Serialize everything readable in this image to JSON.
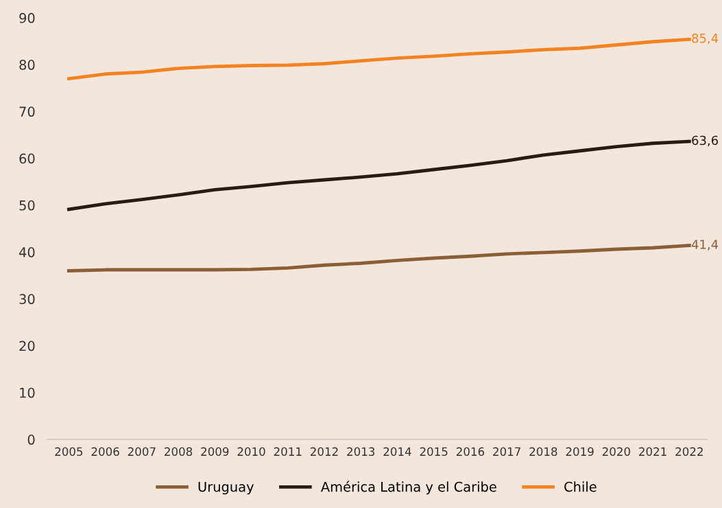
{
  "chart_data": {
    "type": "line",
    "categories": [
      "2005",
      "2006",
      "2007",
      "2008",
      "2009",
      "2010",
      "2011",
      "2012",
      "2013",
      "2014",
      "2015",
      "2016",
      "2017",
      "2018",
      "2019",
      "2020",
      "2021",
      "2022"
    ],
    "series": [
      {
        "name": "Uruguay",
        "color": "#8c5e35",
        "values": [
          36.0,
          36.2,
          36.2,
          36.2,
          36.2,
          36.3,
          36.6,
          37.2,
          37.6,
          38.2,
          38.7,
          39.1,
          39.6,
          39.9,
          40.2,
          40.6,
          40.9,
          41.4
        ],
        "value_labels": [
          null,
          null,
          null,
          null,
          null,
          null,
          null,
          null,
          null,
          null,
          null,
          null,
          null,
          null,
          null,
          null,
          null,
          "41,4"
        ]
      },
      {
        "name": "América Latina y el Caribe",
        "color": "#2a1a14",
        "values": [
          49.1,
          50.3,
          51.2,
          52.2,
          53.3,
          54.0,
          54.8,
          55.4,
          56.0,
          56.7,
          57.6,
          58.5,
          59.5,
          60.7,
          61.6,
          62.5,
          63.2,
          63.6
        ],
        "value_labels": [
          null,
          null,
          null,
          null,
          null,
          null,
          null,
          null,
          null,
          null,
          null,
          null,
          null,
          null,
          null,
          null,
          null,
          "63,6"
        ]
      },
      {
        "name": "Chile",
        "color": "#f58220",
        "values": [
          77.0,
          78.0,
          78.4,
          79.2,
          79.6,
          79.8,
          79.9,
          80.2,
          80.8,
          81.4,
          81.8,
          82.3,
          82.7,
          83.2,
          83.5,
          84.2,
          84.9,
          85.4
        ],
        "value_labels": [
          null,
          null,
          null,
          null,
          null,
          null,
          null,
          null,
          null,
          null,
          null,
          null,
          null,
          null,
          null,
          null,
          null,
          "85,4"
        ]
      }
    ],
    "ylim": [
      0,
      90
    ],
    "yticks": [
      0,
      10,
      20,
      30,
      40,
      50,
      60,
      70,
      80,
      90
    ],
    "grid": false,
    "legend": "bottom",
    "marker": "none",
    "line_style": "solid"
  }
}
